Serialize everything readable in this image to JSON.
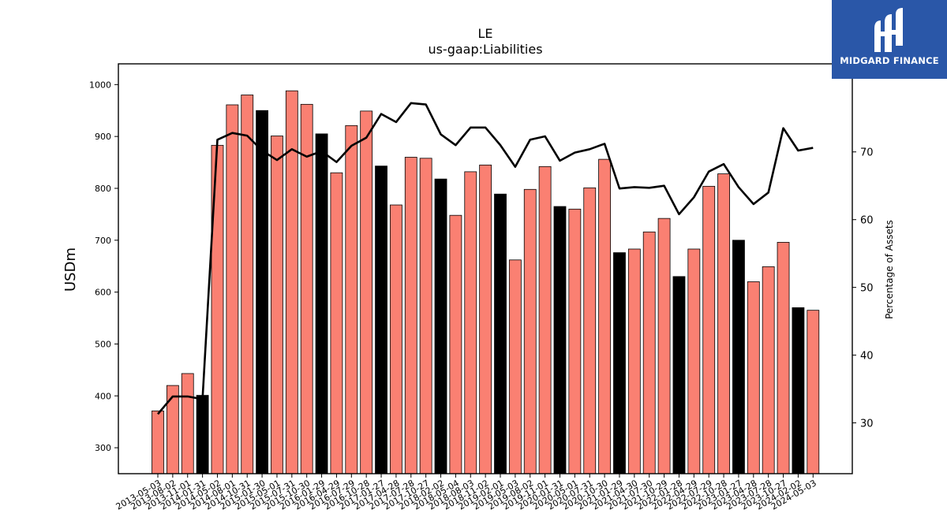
{
  "brand": {
    "name": "MIDGARD FINANCE",
    "logo_icon": "midgard-m-logo-icon",
    "background": "#2a57a8"
  },
  "chart_data": {
    "type": "bar",
    "title": "LE",
    "subtitle": "us-gaap:Liabilities",
    "ylabel": "USDm",
    "y2label": "Percentage of Assets",
    "ylim": [
      250,
      1040
    ],
    "y2lim": [
      22.5,
      83
    ],
    "y_ticks": [
      300,
      400,
      500,
      600,
      700,
      800,
      900,
      1000
    ],
    "y2_ticks": [
      30,
      40,
      50,
      60,
      70
    ],
    "colors": {
      "bar": "#fa8072",
      "bar_highlight": "#000000",
      "line": "#000000"
    },
    "categories": [
      "2013-05-03",
      "2013-08-02",
      "2013-11-01",
      "2014-01-31",
      "2014-05-02",
      "2014-08-01",
      "2014-10-31",
      "2015-01-30",
      "2015-05-01",
      "2015-07-31",
      "2015-10-30",
      "2016-01-29",
      "2016-04-29",
      "2016-07-29",
      "2016-10-28",
      "2017-01-27",
      "2017-04-28",
      "2017-07-28",
      "2017-10-27",
      "2018-02-02",
      "2018-05-04",
      "2018-08-03",
      "2018-11-02",
      "2019-02-01",
      "2019-05-03",
      "2019-08-02",
      "2019-11-01",
      "2020-01-31",
      "2020-05-01",
      "2020-07-31",
      "2020-10-30",
      "2021-01-29",
      "2021-04-30",
      "2021-07-30",
      "2021-10-29",
      "2022-01-28",
      "2022-04-29",
      "2022-07-29",
      "2022-10-28",
      "2023-01-27",
      "2023-04-28",
      "2023-07-28",
      "2023-10-27",
      "2024-02-02",
      "2024-05-03"
    ],
    "series": [
      {
        "values": [
          371,
          420,
          443,
          401,
          883,
          961,
          980,
          950,
          901,
          988,
          962,
          905,
          830,
          921,
          949,
          843,
          768,
          860,
          858,
          818,
          748,
          832,
          845,
          789,
          662,
          798,
          842,
          765,
          760,
          801,
          856,
          676,
          683,
          716,
          742,
          630,
          683,
          804,
          828,
          700,
          620,
          649,
          696,
          570,
          565
        ],
        "highlight": [
          false,
          false,
          false,
          true,
          false,
          false,
          false,
          true,
          false,
          false,
          false,
          true,
          false,
          false,
          false,
          true,
          false,
          false,
          false,
          true,
          false,
          false,
          false,
          true,
          false,
          false,
          false,
          true,
          false,
          false,
          false,
          true,
          false,
          false,
          false,
          true,
          false,
          false,
          false,
          true,
          false,
          false,
          false,
          true,
          false
        ]
      },
      {
        "axis": "right",
        "values": [
          31.3,
          33.9,
          33.9,
          33.5,
          71.8,
          72.8,
          72.4,
          70.2,
          68.8,
          70.4,
          69.3,
          70.1,
          68.5,
          70.9,
          72.1,
          75.6,
          74.4,
          77.2,
          77.0,
          72.6,
          71.0,
          73.6,
          73.6,
          71.0,
          67.8,
          71.8,
          72.3,
          68.7,
          69.9,
          70.4,
          71.2,
          64.6,
          64.8,
          64.7,
          65.0,
          60.8,
          63.3,
          67.1,
          68.2,
          64.8,
          62.3,
          64.0,
          73.5,
          70.2,
          70.6
        ]
      }
    ]
  }
}
